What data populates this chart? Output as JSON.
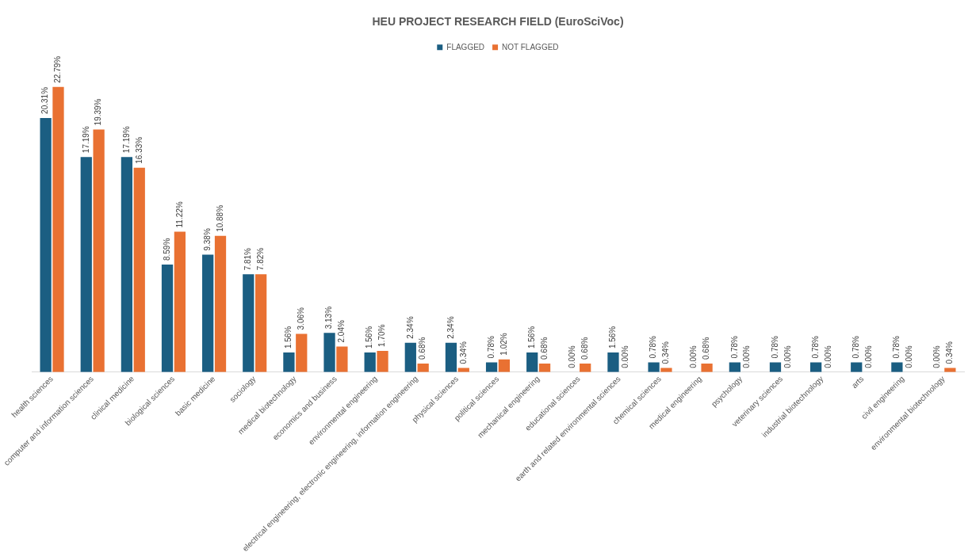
{
  "chart_data": {
    "type": "bar",
    "title": "HEU PROJECT RESEARCH FIELD (EuroSciVoc)",
    "categories": [
      "health sciences",
      "computer and information sciences",
      "clinical medicine",
      "biological sciences",
      "basic medicine",
      "sociology",
      "medical biotechnology",
      "economics and business",
      "environmental engineering",
      "electrical engineering, electronic engineering, information engineering",
      "physical sciences",
      "political sciences",
      "mechanical engineering",
      "educational sciences",
      "earth and related environmental sciences",
      "chemical sciences",
      "medical engineering",
      "psychology",
      "veterinary sciences",
      "industrial biotechnology",
      "arts",
      "civil engineering",
      "environmental biotechnology"
    ],
    "series": [
      {
        "name": "FLAGGED",
        "color": "#1b5e82",
        "values": [
          20.31,
          17.19,
          17.19,
          8.59,
          9.38,
          7.81,
          1.56,
          3.13,
          1.56,
          2.34,
          2.34,
          0.78,
          1.56,
          0.0,
          1.56,
          0.78,
          0.0,
          0.78,
          0.78,
          0.78,
          0.78,
          0.78,
          0.0
        ],
        "value_labels": [
          "20.31%",
          "17.19%",
          "17.19%",
          "8.59%",
          "9.38%",
          "7.81%",
          "1.56%",
          "3.13%",
          "1.56%",
          "2.34%",
          "2.34%",
          "0.78%",
          "1.56%",
          "0.00%",
          "1.56%",
          "0.78%",
          "0.00%",
          "0.78%",
          "0.78%",
          "0.78%",
          "0.78%",
          "0.78%",
          "0.00%"
        ]
      },
      {
        "name": "NOT FLAGGED",
        "color": "#e97132",
        "values": [
          22.79,
          19.39,
          16.33,
          11.22,
          10.88,
          7.82,
          3.06,
          2.04,
          1.7,
          0.68,
          0.34,
          1.02,
          0.68,
          0.68,
          0.0,
          0.34,
          0.68,
          0.0,
          0.0,
          0.0,
          0.0,
          0.0,
          0.34
        ],
        "value_labels": [
          "22.79%",
          "19.39%",
          "16.33%",
          "11.22%",
          "10.88%",
          "7.82%",
          "3.06%",
          "2.04%",
          "1.70%",
          "0.68%",
          "0.34%",
          "1.02%",
          "0.68%",
          "0.68%",
          "0.00%",
          "0.34%",
          "0.68%",
          "0.00%",
          "0.00%",
          "0.00%",
          "0.00%",
          "0.00%",
          "0.34%"
        ]
      }
    ],
    "legend": "top",
    "grid": false
  }
}
